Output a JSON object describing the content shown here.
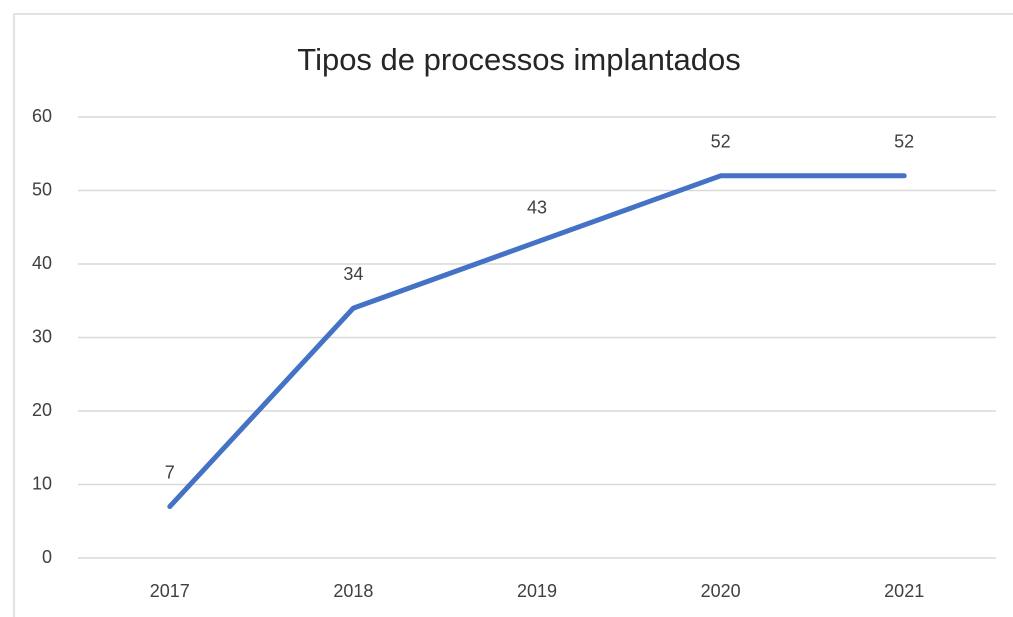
{
  "chart_data": {
    "type": "line",
    "title": "Tipos de processos implantados",
    "categories": [
      "2017",
      "2018",
      "2019",
      "2020",
      "2021"
    ],
    "series": [
      {
        "name": "Tipos de processos implantados",
        "color": "#4472c4",
        "values": [
          7,
          34,
          43,
          52,
          52
        ]
      }
    ],
    "ylim": [
      0,
      60
    ],
    "yticks": [
      0,
      10,
      20,
      30,
      40,
      50,
      60
    ],
    "grid": true,
    "data_labels": true
  }
}
